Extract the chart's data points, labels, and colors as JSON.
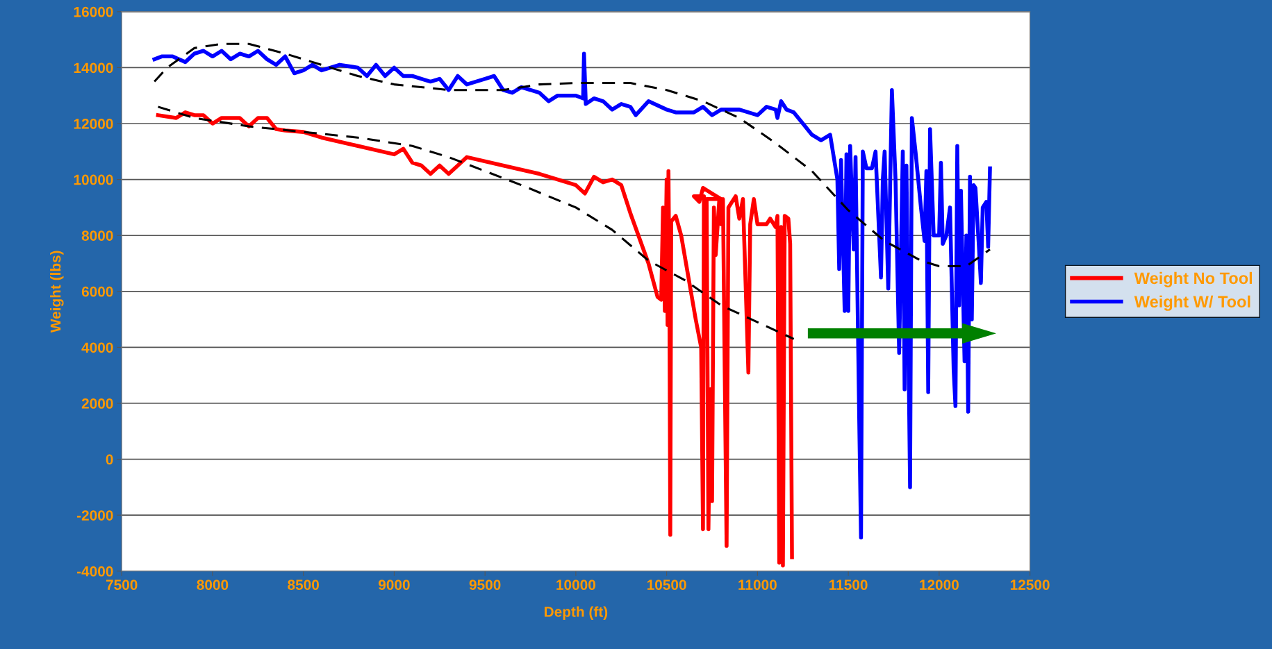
{
  "chart_data": {
    "type": "line",
    "xlabel": "Depth (ft)",
    "ylabel": "Weight (lbs)",
    "xlim": [
      7500,
      12500
    ],
    "xticks": [
      7500,
      8000,
      8500,
      9000,
      9500,
      10000,
      10500,
      11000,
      11500,
      12000,
      12500
    ],
    "ylim": [
      -4000,
      16000
    ],
    "yticks": [
      -4000,
      -2000,
      0,
      2000,
      4000,
      6000,
      8000,
      10000,
      12000,
      14000,
      16000
    ],
    "grid": "y",
    "legend": "right",
    "marker": "none",
    "series": [
      {
        "name": "Weight No Tool",
        "color": "#ff0000",
        "line_style": "solid",
        "x": [
          7700,
          7800,
          7850,
          7900,
          7950,
          8000,
          8050,
          8100,
          8150,
          8200,
          8250,
          8300,
          8350,
          8400,
          8500,
          8600,
          8800,
          9000,
          9050,
          9100,
          9150,
          9200,
          9250,
          9300,
          9350,
          9400,
          9600,
          9800,
          9900,
          10000,
          10050,
          10100,
          10150,
          10200,
          10250,
          10300,
          10400,
          10450,
          10470,
          10480,
          10490,
          10500,
          10505,
          10510,
          10515,
          10520,
          10525,
          10550,
          10580,
          10620,
          10660,
          10690,
          10700,
          10705,
          10650,
          10680,
          10700,
          10750,
          10800,
          10720,
          10730,
          10740,
          10750,
          10760,
          10770,
          10790,
          10800,
          10810,
          10820,
          10830,
          10840,
          10860,
          10880,
          10900,
          10920,
          10950,
          10960,
          10980,
          11000,
          11050,
          11070,
          11100,
          11110,
          11120,
          11130,
          11140,
          11150,
          11170,
          11180,
          11190
        ],
        "values": [
          12300,
          12200,
          12400,
          12300,
          12300,
          12000,
          12200,
          12200,
          12200,
          11900,
          12200,
          12200,
          11800,
          11750,
          11700,
          11500,
          11200,
          10900,
          11100,
          10600,
          10500,
          10200,
          10500,
          10200,
          10500,
          10800,
          10500,
          10200,
          10000,
          9800,
          9500,
          10100,
          9900,
          10000,
          9800,
          8800,
          7000,
          5800,
          5700,
          9000,
          5300,
          10000,
          4800,
          10300,
          6000,
          -2700,
          8500,
          8700,
          8000,
          6500,
          5000,
          4000,
          -2500,
          9400,
          9400,
          9200,
          9700,
          9500,
          9300,
          9300,
          -2500,
          2500,
          -1500,
          9000,
          7300,
          9300,
          8400,
          9300,
          3000,
          -3100,
          9000,
          9200,
          9400,
          8600,
          9300,
          3100,
          8400,
          9300,
          8400,
          8400,
          8600,
          8300,
          8700,
          -3700,
          8300,
          -3800,
          8700,
          8600,
          7700,
          -3500
        ]
      },
      {
        "name": "Weight W/ Tool",
        "color": "#0000ff",
        "line_style": "solid",
        "x": [
          7680,
          7720,
          7780,
          7850,
          7900,
          7950,
          8000,
          8050,
          8100,
          8150,
          8200,
          8250,
          8300,
          8350,
          8400,
          8450,
          8500,
          8550,
          8600,
          8700,
          8800,
          8850,
          8900,
          8950,
          9000,
          9050,
          9100,
          9150,
          9200,
          9250,
          9300,
          9350,
          9400,
          9500,
          9550,
          9600,
          9650,
          9700,
          9800,
          9850,
          9900,
          9950,
          10000,
          10040,
          10045,
          10055,
          10100,
          10150,
          10200,
          10250,
          10300,
          10330,
          10400,
          10500,
          10550,
          10650,
          10700,
          10750,
          10800,
          10900,
          10950,
          11000,
          11050,
          11100,
          11110,
          11130,
          11160,
          11200,
          11250,
          11300,
          11350,
          11400,
          11420,
          11440,
          11450,
          11460,
          11480,
          11490,
          11500,
          11510,
          11530,
          11540,
          11560,
          11570,
          11580,
          11600,
          11630,
          11650,
          11680,
          11690,
          11700,
          11720,
          11740,
          11760,
          11780,
          11800,
          11810,
          11820,
          11840,
          11850,
          11870,
          11900,
          11920,
          11930,
          11940,
          11950,
          11970,
          12000,
          12010,
          12020,
          12040,
          12060,
          12080,
          12090,
          12100,
          12110,
          12120,
          12140,
          12150,
          12160,
          12170,
          12180,
          12190,
          12200,
          12220,
          12230,
          12240,
          12260,
          12270,
          12280
        ],
        "values": [
          14300,
          14400,
          14400,
          14200,
          14500,
          14600,
          14400,
          14600,
          14300,
          14500,
          14400,
          14600,
          14300,
          14100,
          14400,
          13800,
          13900,
          14100,
          13900,
          14100,
          14000,
          13700,
          14100,
          13700,
          14000,
          13700,
          13700,
          13600,
          13500,
          13600,
          13200,
          13700,
          13400,
          13600,
          13700,
          13200,
          13100,
          13300,
          13100,
          12800,
          13000,
          13000,
          13000,
          12900,
          14500,
          12700,
          12900,
          12800,
          12500,
          12700,
          12600,
          12300,
          12800,
          12500,
          12400,
          12400,
          12600,
          12300,
          12500,
          12500,
          12400,
          12300,
          12600,
          12500,
          12200,
          12800,
          12500,
          12400,
          12000,
          11600,
          11400,
          11600,
          10800,
          10000,
          6800,
          10700,
          5300,
          10900,
          5300,
          11200,
          7500,
          10800,
          1500,
          -2800,
          11000,
          10400,
          10400,
          11000,
          6500,
          10000,
          11000,
          6100,
          13200,
          10000,
          3800,
          11000,
          2500,
          10500,
          -1000,
          12200,
          11000,
          9000,
          7800,
          10300,
          2400,
          11800,
          8000,
          8000,
          10600,
          7700,
          8000,
          9000,
          3200,
          1900,
          11200,
          5500,
          9600,
          3500,
          8000,
          1700,
          10100,
          5000,
          9800,
          9700,
          7500,
          6300,
          9000,
          9200,
          7600,
          10400
        ]
      },
      {
        "color": "#000000",
        "line_style": "dashed",
        "x": [
          7680,
          7750,
          7900,
          8050,
          8200,
          8400,
          8600,
          8800,
          9000,
          9300,
          9600,
          9800,
          10000,
          10300,
          10500,
          10700,
          10900,
          11100,
          11300,
          11500,
          11700,
          11900,
          12000,
          12150,
          12280
        ],
        "values": [
          13500,
          14000,
          14700,
          14850,
          14850,
          14500,
          14100,
          13700,
          13400,
          13200,
          13200,
          13400,
          13450,
          13450,
          13200,
          12800,
          12200,
          11300,
          10300,
          8900,
          7800,
          7100,
          6900,
          6900,
          7500
        ]
      },
      {
        "color": "#000000",
        "line_style": "dashed",
        "x": [
          7700,
          7900,
          8200,
          8500,
          8800,
          9100,
          9300,
          9500,
          9700,
          10000,
          10200,
          10400,
          10600,
          10800,
          11000,
          11200
        ],
        "values": [
          12600,
          12200,
          11900,
          11700,
          11500,
          11200,
          10800,
          10300,
          9800,
          9000,
          8200,
          7100,
          6400,
          5500,
          4900,
          4300
        ]
      }
    ]
  }
}
